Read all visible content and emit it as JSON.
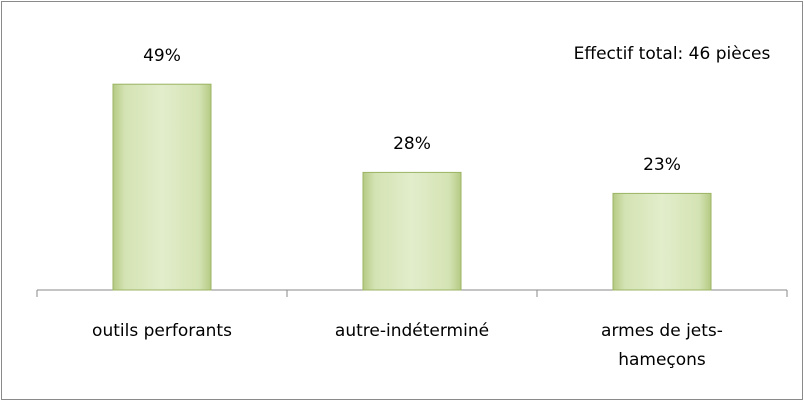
{
  "chart_data": {
    "type": "bar",
    "categories": [
      "outils perforants",
      "autre-indéterminé",
      "armes de jets-hameçons"
    ],
    "values": [
      49,
      28,
      23
    ],
    "value_labels": [
      "49%",
      "28%",
      "23%"
    ],
    "color": "#c3d69b",
    "annotation": "Effectif total: 46 pièces"
  }
}
